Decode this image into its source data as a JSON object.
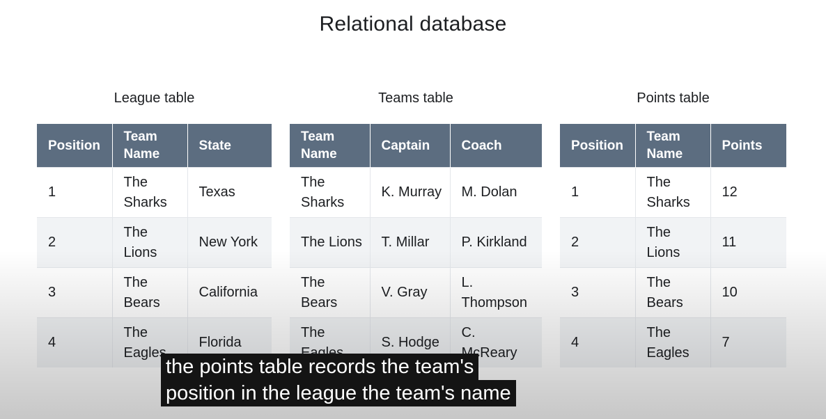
{
  "slide": {
    "title": "Relational database"
  },
  "tables": [
    {
      "caption": "League table",
      "headers": [
        "Position",
        "Team Name",
        "State"
      ],
      "rows": [
        [
          "1",
          "The Sharks",
          "Texas"
        ],
        [
          "2",
          "The Lions",
          "New York"
        ],
        [
          "3",
          "The Bears",
          "California"
        ],
        [
          "4",
          "The Eagles",
          "Florida"
        ]
      ]
    },
    {
      "caption": "Teams table",
      "headers": [
        "Team Name",
        "Captain",
        "Coach"
      ],
      "rows": [
        [
          "The Sharks",
          "K. Murray",
          "M. Dolan"
        ],
        [
          "The Lions",
          "T. Millar",
          "P. Kirkland"
        ],
        [
          "The Bears",
          "V. Gray",
          "L. Thompson"
        ],
        [
          "The Eagles",
          "S. Hodge",
          "C. McReary"
        ]
      ]
    },
    {
      "caption": "Points table",
      "headers": [
        "Position",
        "Team Name",
        "Points"
      ],
      "rows": [
        [
          "1",
          "The Sharks",
          "12"
        ],
        [
          "2",
          "The Lions",
          "11"
        ],
        [
          "3",
          "The Bears",
          "10"
        ],
        [
          "4",
          "The Eagles",
          "7"
        ]
      ]
    }
  ],
  "subtitle": {
    "line1": "the points table records the team's",
    "line2": "position in the league the team's name"
  },
  "colors": {
    "header_bg": "#5c6d80",
    "stripe": "#f1f3f5",
    "caption_bg": "#141414"
  }
}
